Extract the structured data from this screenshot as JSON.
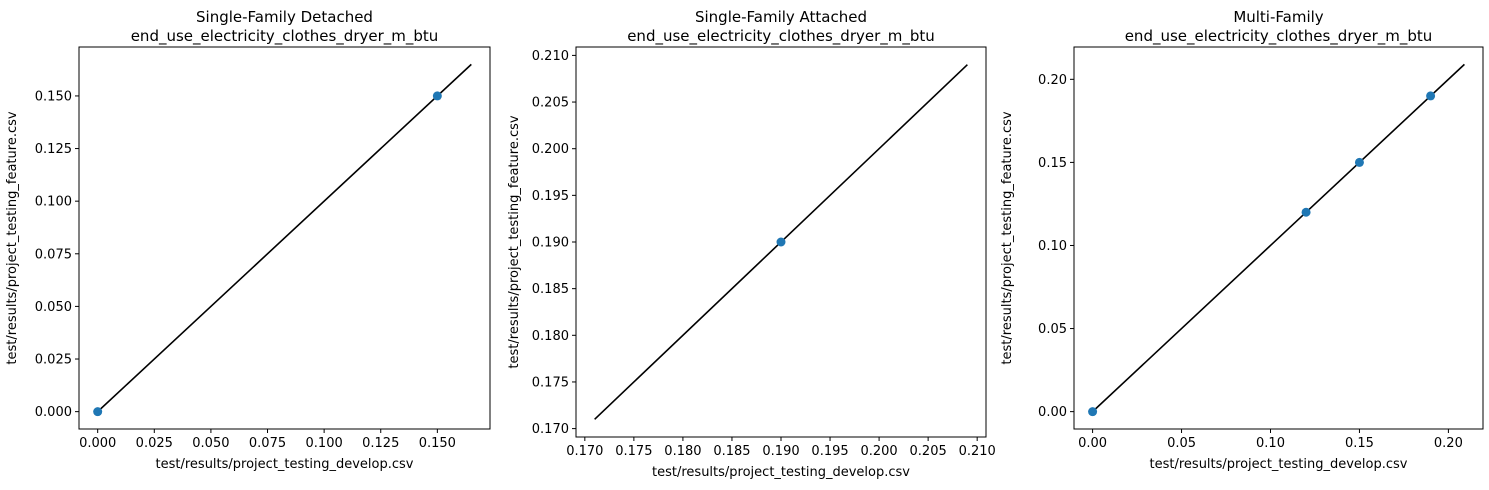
{
  "chart_data": [
    {
      "type": "scatter",
      "title": [
        "Single-Family Detached",
        "end_use_electricity_clothes_dryer_m_btu"
      ],
      "xlabel": "test/results/project_testing_develop.csv",
      "ylabel": "test/results/project_testing_feature.csv",
      "xlim": [
        -0.00825,
        0.17325
      ],
      "ylim": [
        -0.00825,
        0.17325
      ],
      "xticks": [
        "0.000",
        "0.025",
        "0.050",
        "0.075",
        "0.100",
        "0.125",
        "0.150"
      ],
      "yticks": [
        "0.000",
        "0.025",
        "0.050",
        "0.075",
        "0.100",
        "0.125",
        "0.150"
      ],
      "reference_line": [
        0,
        0.165
      ],
      "points": [
        {
          "x": 0.0,
          "y": 0.0
        },
        {
          "x": 0.15,
          "y": 0.15
        }
      ],
      "point_color": "#1f77b4"
    },
    {
      "type": "scatter",
      "title": [
        "Single-Family Attached",
        "end_use_electricity_clothes_dryer_m_btu"
      ],
      "xlabel": "test/results/project_testing_develop.csv",
      "ylabel": "test/results/project_testing_feature.csv",
      "xlim": [
        0.1691,
        0.2109
      ],
      "ylim": [
        0.1691,
        0.2109
      ],
      "xticks": [
        "0.170",
        "0.175",
        "0.180",
        "0.185",
        "0.190",
        "0.195",
        "0.200",
        "0.205",
        "0.210"
      ],
      "yticks": [
        "0.170",
        "0.175",
        "0.180",
        "0.185",
        "0.190",
        "0.195",
        "0.200",
        "0.205",
        "0.210"
      ],
      "reference_line": [
        0.171,
        0.209
      ],
      "points": [
        {
          "x": 0.19,
          "y": 0.19
        }
      ],
      "point_color": "#1f77b4"
    },
    {
      "type": "scatter",
      "title": [
        "Multi-Family",
        "end_use_electricity_clothes_dryer_m_btu"
      ],
      "xlabel": "test/results/project_testing_develop.csv",
      "ylabel": "test/results/project_testing_feature.csv",
      "xlim": [
        -0.01045,
        0.21945
      ],
      "ylim": [
        -0.01045,
        0.21945
      ],
      "xticks": [
        "0.00",
        "0.05",
        "0.10",
        "0.15",
        "0.20"
      ],
      "yticks": [
        "0.00",
        "0.05",
        "0.10",
        "0.15",
        "0.20"
      ],
      "reference_line": [
        0,
        0.209
      ],
      "points": [
        {
          "x": 0.0,
          "y": 0.0
        },
        {
          "x": 0.12,
          "y": 0.12
        },
        {
          "x": 0.15,
          "y": 0.15
        },
        {
          "x": 0.19,
          "y": 0.19
        }
      ],
      "point_color": "#1f77b4"
    }
  ]
}
